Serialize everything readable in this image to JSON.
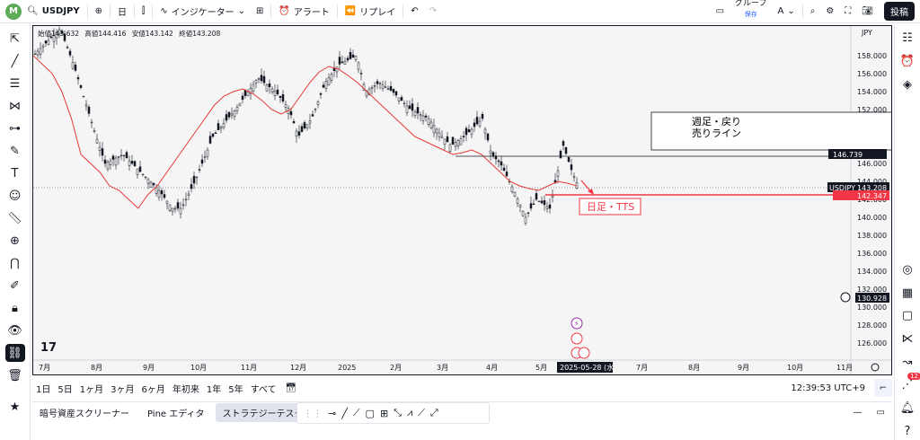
{
  "topbar": {
    "avatar": "M",
    "symbol": "USDJPY",
    "interval": "日",
    "indicators": "インジケーター",
    "alert": "アラート",
    "replay": "リプレイ",
    "group": "グループ",
    "group_sub": "保存",
    "font_toggle": "A",
    "post": "投稿"
  },
  "legend": {
    "open": "始値143.632",
    "high": "高値144.416",
    "low": "安値143.142",
    "close": "終値143.208"
  },
  "axis": {
    "currency": "JPY",
    "y_ticks": [
      "158.000",
      "156.000",
      "154.000",
      "152.000",
      "150.000",
      "148.000",
      "146.000",
      "144.000",
      "142.000",
      "140.000",
      "138.000",
      "136.000",
      "134.000",
      "132.000",
      "130.000",
      "128.000",
      "126.000"
    ],
    "x_ticks": [
      "7月",
      "8月",
      "9月",
      "10月",
      "11月",
      "12月",
      "2025",
      "2月",
      "3月",
      "4月",
      "5月",
      "6月",
      "7月",
      "8月",
      "9月",
      "10月",
      "11月"
    ],
    "date_badge": "2025-05-28 (水)",
    "tags": {
      "line_high": "146.739",
      "symbol": "USDJPY",
      "last": "143.208",
      "red_line": "142.347",
      "cursor": "130.928"
    }
  },
  "annotations": {
    "weekly_box": "週足・戻り\n売りライン",
    "daily_box": "日足・TTS"
  },
  "bottombar": {
    "ranges": [
      "1日",
      "5日",
      "1ヶ月",
      "3ヶ月",
      "6ヶ月",
      "年初来",
      "1年",
      "5年",
      "すべて"
    ],
    "clock": "12:39:53 UTC+9"
  },
  "panels": {
    "tabs": [
      "暗号資産スクリーナー",
      "Pine エディタ",
      "ストラテジーテスター"
    ],
    "active": "ストラテジーテスター"
  },
  "right_badge": "12",
  "colors": {
    "ma": "#e53935",
    "candle": "#131722",
    "red_line": "#f23645",
    "bg": "#f5f5f5"
  },
  "chart_data": {
    "type": "line",
    "series": [
      {
        "values": [
          158.0,
          157.0,
          156.0,
          154.0,
          151.0,
          147.0,
          146.0,
          145.0,
          143.5,
          143.0,
          142.0,
          141.0,
          142.5,
          143.5,
          145.0,
          146.5,
          148.0,
          149.5,
          151.0,
          152.5,
          153.5,
          154.0,
          154.3,
          153.8,
          153.0,
          152.0,
          151.5,
          152.0,
          153.5,
          155.0,
          156.2,
          156.8,
          156.5,
          155.8,
          155.0,
          154.0,
          153.0,
          152.0,
          151.0,
          150.0,
          149.0,
          148.5,
          148.0,
          147.5,
          147.0,
          147.2,
          147.5,
          147.0,
          146.0,
          145.0,
          144.0,
          143.5,
          143.2,
          143.0,
          143.5,
          144.0,
          143.8,
          143.5
        ]
      }
    ],
    "ylim": [
      125,
      160
    ]
  }
}
